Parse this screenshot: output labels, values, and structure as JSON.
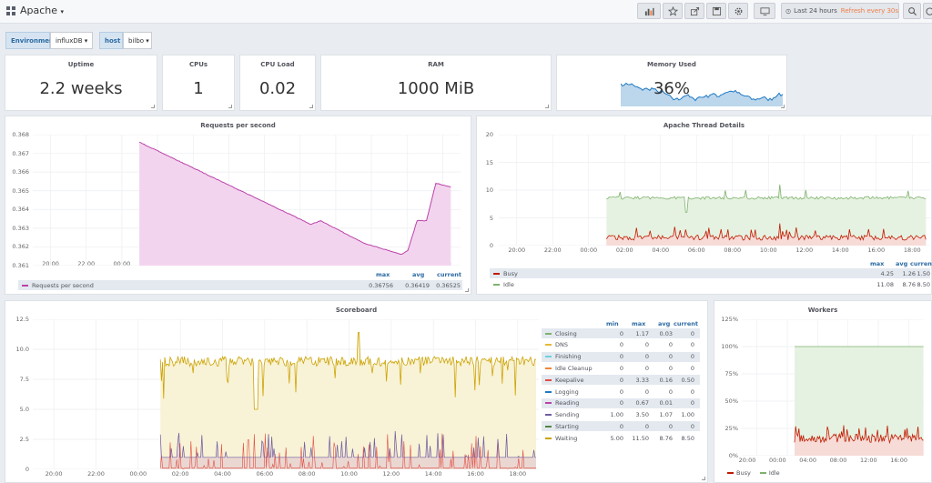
{
  "nav": {
    "title": "Apache",
    "time_range": "Last 24 hours",
    "refresh": "Refresh every 30s"
  },
  "variables": [
    {
      "label": "Environment",
      "value": "influxDB"
    },
    {
      "label": "host",
      "value": "bilbo"
    }
  ],
  "stats": {
    "uptime": {
      "title": "Uptime",
      "value": "2.2 weeks"
    },
    "cpus": {
      "title": "CPUs",
      "value": "1"
    },
    "cpu_load": {
      "title": "CPU Load",
      "value": "0.02"
    },
    "ram": {
      "title": "RAM",
      "value": "1000 MiB"
    },
    "memory_used": {
      "title": "Memory Used",
      "value": "36%"
    }
  },
  "time_ticks": [
    "20:00",
    "22:00",
    "00:00",
    "02:00",
    "04:00",
    "06:00",
    "08:00",
    "10:00",
    "12:00",
    "14:00",
    "16:00",
    "18:00"
  ],
  "requests": {
    "title": "Requests per second",
    "yticks": [
      "0.368",
      "0.367",
      "0.366",
      "0.365",
      "0.364",
      "0.363",
      "0.362",
      "0.361"
    ],
    "legend_headers": [
      "max",
      "avg",
      "current"
    ],
    "legend": [
      {
        "name": "Requests per second",
        "color": "#ba43a9",
        "max": "0.36756",
        "avg": "0.36419",
        "current": "0.36525"
      }
    ]
  },
  "threads": {
    "title": "Apache Thread Details",
    "yticks": [
      "20",
      "15",
      "10",
      "5",
      "0"
    ],
    "legend_headers": [
      "max",
      "avg",
      "current"
    ],
    "legend": [
      {
        "name": "Busy",
        "color": "#bf1b00",
        "max": "4.25",
        "avg": "1.26",
        "current": "1.50"
      },
      {
        "name": "Idle",
        "color": "#7eb26d",
        "max": "11.08",
        "avg": "8.76",
        "current": "8.50"
      }
    ]
  },
  "scoreboard": {
    "title": "Scoreboard",
    "yticks": [
      "12.5",
      "10.0",
      "7.5",
      "5.0",
      "2.5",
      "0"
    ],
    "legend_headers": [
      "min",
      "max",
      "avg",
      "current"
    ],
    "legend": [
      {
        "name": "Closing",
        "color": "#7eb26d",
        "min": "0",
        "max": "1.17",
        "avg": "0.03",
        "current": "0"
      },
      {
        "name": "DNS",
        "color": "#eab839",
        "min": "0",
        "max": "0",
        "avg": "0",
        "current": "0"
      },
      {
        "name": "Finishing",
        "color": "#6ed0e0",
        "min": "0",
        "max": "0",
        "avg": "0",
        "current": "0"
      },
      {
        "name": "Idle Cleanup",
        "color": "#ef843c",
        "min": "0",
        "max": "0",
        "avg": "0",
        "current": "0"
      },
      {
        "name": "Keepalive",
        "color": "#e24d42",
        "min": "0",
        "max": "3.33",
        "avg": "0.16",
        "current": "0.50"
      },
      {
        "name": "Logging",
        "color": "#1f78c1",
        "min": "0",
        "max": "0",
        "avg": "0",
        "current": "0"
      },
      {
        "name": "Reading",
        "color": "#ba43a9",
        "min": "0",
        "max": "0.67",
        "avg": "0.01",
        "current": "0"
      },
      {
        "name": "Sending",
        "color": "#705da0",
        "min": "1.00",
        "max": "3.50",
        "avg": "1.07",
        "current": "1.00"
      },
      {
        "name": "Starting",
        "color": "#508642",
        "min": "0",
        "max": "0",
        "avg": "0",
        "current": "0"
      },
      {
        "name": "Waiting",
        "color": "#cca300",
        "min": "5.00",
        "max": "11.50",
        "avg": "8.76",
        "current": "8.50"
      }
    ]
  },
  "workers": {
    "title": "Workers",
    "yticks": [
      "125%",
      "100%",
      "75%",
      "50%",
      "25%",
      "0%"
    ],
    "xticks": [
      "20:00",
      "00:00",
      "04:00",
      "08:00",
      "12:00",
      "16:00"
    ],
    "legend": [
      {
        "name": "Busy",
        "color": "#bf1b00"
      },
      {
        "name": "Idle",
        "color": "#7eb26d"
      }
    ]
  }
}
